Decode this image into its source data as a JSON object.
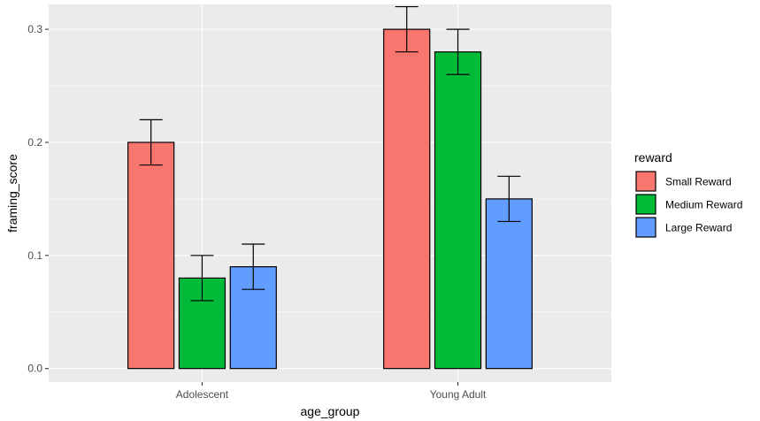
{
  "chart_data": {
    "type": "bar",
    "xlabel": "age_group",
    "ylabel": "framing_score",
    "categories": [
      "Adolescent",
      "Young Adult"
    ],
    "legend_title": "reward",
    "legend_position": "right",
    "series": [
      {
        "name": "Small Reward",
        "color": "#F8766D",
        "values": [
          0.2,
          0.3
        ],
        "errors": [
          0.02,
          0.02
        ]
      },
      {
        "name": "Medium Reward",
        "color": "#00BA38",
        "values": [
          0.08,
          0.28
        ],
        "errors": [
          0.02,
          0.02
        ]
      },
      {
        "name": "Large Reward",
        "color": "#619CFF",
        "values": [
          0.09,
          0.15
        ],
        "errors": [
          0.02,
          0.02
        ]
      }
    ],
    "ylim": [
      -0.012,
      0.322
    ],
    "yticks": [
      0.0,
      0.1,
      0.2,
      0.3
    ],
    "ytick_labels": [
      "0.0",
      "0.1",
      "0.2",
      "0.3"
    ],
    "grid": true,
    "panel_background": "#EBEBEB",
    "grid_color": "#FFFFFF"
  }
}
